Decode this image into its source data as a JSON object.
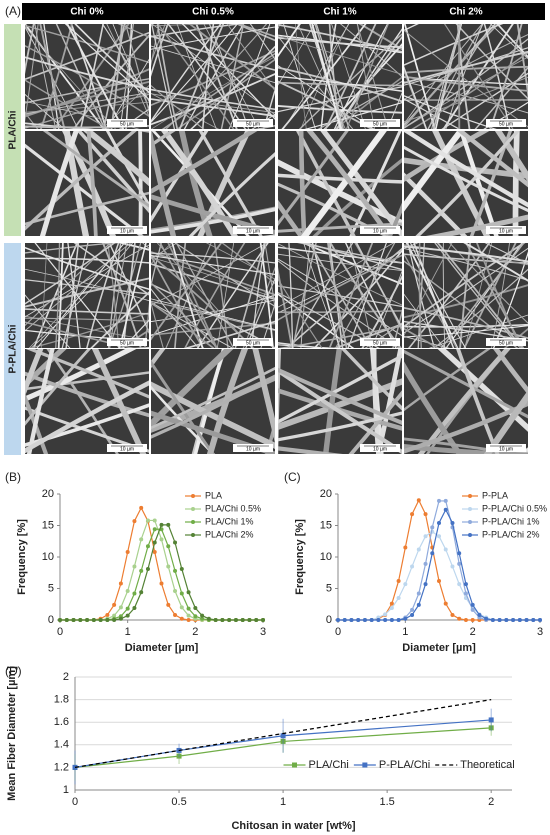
{
  "panel_labels": [
    "(A)",
    "(B)",
    "(C)",
    "(D)"
  ],
  "sem": {
    "columns": [
      "Chi 0%",
      "Chi 0.5%",
      "Chi 1%",
      "Chi 2%"
    ],
    "rows": [
      "PLA/Chi",
      "P-PLA/Chi"
    ],
    "scale_bars": [
      "50 µm",
      "10 µm"
    ]
  },
  "chart_data": [
    {
      "type": "line",
      "xlabel": "Diameter [µm]",
      "ylabel": "Frequency [%]",
      "xlim": [
        0,
        3
      ],
      "ylim": [
        0,
        20
      ],
      "xticks": [
        0,
        1,
        2,
        3
      ],
      "yticks": [
        0,
        5,
        10,
        15,
        20
      ],
      "grid": false,
      "legend": "upper right",
      "x": [
        0,
        0.1,
        0.2,
        0.3,
        0.4,
        0.5,
        0.6,
        0.7,
        0.8,
        0.9,
        1,
        1.1,
        1.2,
        1.3,
        1.4,
        1.5,
        1.6,
        1.7,
        1.8,
        1.9,
        2,
        2.1,
        2.2,
        2.3,
        2.4,
        2.5,
        2.6,
        2.7,
        2.8,
        2.9,
        3
      ],
      "series": [
        {
          "name": "PLA",
          "color": "#ed7d31",
          "marker": "circle",
          "values": [
            0,
            0,
            0,
            0,
            0,
            0,
            0.2,
            0.8,
            2.4,
            5.8,
            10.8,
            15.7,
            17.8,
            15.7,
            10.8,
            5.8,
            2.4,
            0.8,
            0.2,
            0,
            0,
            0,
            0,
            0,
            0,
            0,
            0,
            0,
            0,
            0,
            0
          ]
        },
        {
          "name": "PLA/Chi 0.5%",
          "color": "#a9d18e",
          "marker": "circle",
          "values": [
            0,
            0,
            0,
            0,
            0,
            0,
            0,
            0.2,
            0.7,
            2.0,
            4.6,
            8.5,
            12.8,
            15.8,
            15.8,
            12.8,
            8.5,
            4.6,
            2.0,
            0.7,
            0.2,
            0,
            0,
            0,
            0,
            0,
            0,
            0,
            0,
            0,
            0
          ]
        },
        {
          "name": "PLA/Chi 1%",
          "color": "#70ad47",
          "marker": "circle",
          "values": [
            0,
            0,
            0,
            0,
            0,
            0,
            0,
            0,
            0.2,
            0.6,
            1.8,
            4.2,
            7.8,
            11.7,
            14.4,
            14.4,
            11.7,
            7.8,
            4.2,
            1.8,
            0.6,
            0.2,
            0,
            0,
            0,
            0,
            0,
            0,
            0,
            0,
            0
          ]
        },
        {
          "name": "PLA/Chi 2%",
          "color": "#548235",
          "marker": "circle",
          "values": [
            0,
            0,
            0,
            0,
            0,
            0,
            0,
            0,
            0,
            0.2,
            0.7,
            1.9,
            4.4,
            8.1,
            12.3,
            15.1,
            15.1,
            12.3,
            8.1,
            4.4,
            1.9,
            0.7,
            0.2,
            0,
            0,
            0,
            0,
            0,
            0,
            0,
            0
          ]
        }
      ]
    },
    {
      "type": "line",
      "xlabel": "Diameter [µm]",
      "ylabel": "Frequency [%]",
      "xlim": [
        0,
        3
      ],
      "ylim": [
        0,
        20
      ],
      "xticks": [
        0,
        1,
        2,
        3
      ],
      "yticks": [
        0,
        5,
        10,
        15,
        20
      ],
      "grid": false,
      "legend": "upper right",
      "x": [
        0,
        0.1,
        0.2,
        0.3,
        0.4,
        0.5,
        0.6,
        0.7,
        0.8,
        0.9,
        1,
        1.1,
        1.2,
        1.3,
        1.4,
        1.5,
        1.6,
        1.7,
        1.8,
        1.9,
        2,
        2.1,
        2.2,
        2.3,
        2.4,
        2.5,
        2.6,
        2.7,
        2.8,
        2.9,
        3
      ],
      "series": [
        {
          "name": "P-PLA",
          "color": "#ed7d31",
          "marker": "circle",
          "values": [
            0,
            0,
            0,
            0,
            0,
            0,
            0.2,
            0.8,
            2.6,
            6.2,
            11.5,
            16.8,
            19,
            16.8,
            11.5,
            6.2,
            2.6,
            0.8,
            0.2,
            0,
            0,
            0,
            0,
            0,
            0,
            0,
            0,
            0,
            0,
            0,
            0
          ]
        },
        {
          "name": "P-PLA/Chi 0.5%",
          "color": "#bdd7ee",
          "marker": "circle",
          "values": [
            0,
            0,
            0,
            0,
            0,
            0,
            0.4,
            0.9,
            1.9,
            3.5,
            5.7,
            8.5,
            11.2,
            13.3,
            14,
            13.3,
            11.2,
            8.5,
            5.7,
            3.5,
            1.9,
            0.9,
            0.4,
            0,
            0,
            0,
            0,
            0,
            0,
            0,
            0
          ]
        },
        {
          "name": "P-PLA/Chi 1%",
          "color": "#8faadc",
          "marker": "circle",
          "values": [
            0,
            0,
            0,
            0,
            0,
            0,
            0,
            0,
            0,
            0,
            0.4,
            1.6,
            4.2,
            8.9,
            14.7,
            18.9,
            18.9,
            14.7,
            8.9,
            4.2,
            1.6,
            0.4,
            0,
            0,
            0,
            0,
            0,
            0,
            0,
            0,
            0
          ]
        },
        {
          "name": "P-PLA/Chi 2%",
          "color": "#4472c4",
          "marker": "circle",
          "values": [
            0,
            0,
            0,
            0,
            0,
            0,
            0,
            0,
            0,
            0,
            0.2,
            0.8,
            2.4,
            5.7,
            10.6,
            15.4,
            17.5,
            15.4,
            10.6,
            5.7,
            2.4,
            0.8,
            0.2,
            0,
            0,
            0,
            0,
            0,
            0,
            0,
            0
          ]
        }
      ]
    },
    {
      "type": "line",
      "xlabel": "Chitosan in water [wt%]",
      "ylabel": "Mean Fiber Diameter [µm]",
      "xlim": [
        0,
        2.1
      ],
      "ylim": [
        1,
        2
      ],
      "xticks": [
        0,
        0.5,
        1,
        1.5,
        2
      ],
      "yticks": [
        1,
        1.2,
        1.4,
        1.6,
        1.8,
        2
      ],
      "grid": true,
      "legend": "lower center",
      "x": [
        0,
        0.5,
        1,
        2
      ],
      "series": [
        {
          "name": "PLA/Chi",
          "color": "#70ad47",
          "marker": "square",
          "values": [
            1.2,
            1.3,
            1.43,
            1.55
          ],
          "errors": [
            0.12,
            0.07,
            0.1,
            0.07
          ]
        },
        {
          "name": "P-PLA/Chi",
          "color": "#4472c4",
          "marker": "square",
          "values": [
            1.2,
            1.35,
            1.48,
            1.62
          ],
          "errors": [
            0.15,
            0.06,
            0.15,
            0.1
          ]
        },
        {
          "name": "Theoretical",
          "color": "#000000",
          "marker": "none",
          "dash": true,
          "values": [
            1.2,
            1.35,
            1.5,
            1.8
          ]
        }
      ]
    }
  ]
}
